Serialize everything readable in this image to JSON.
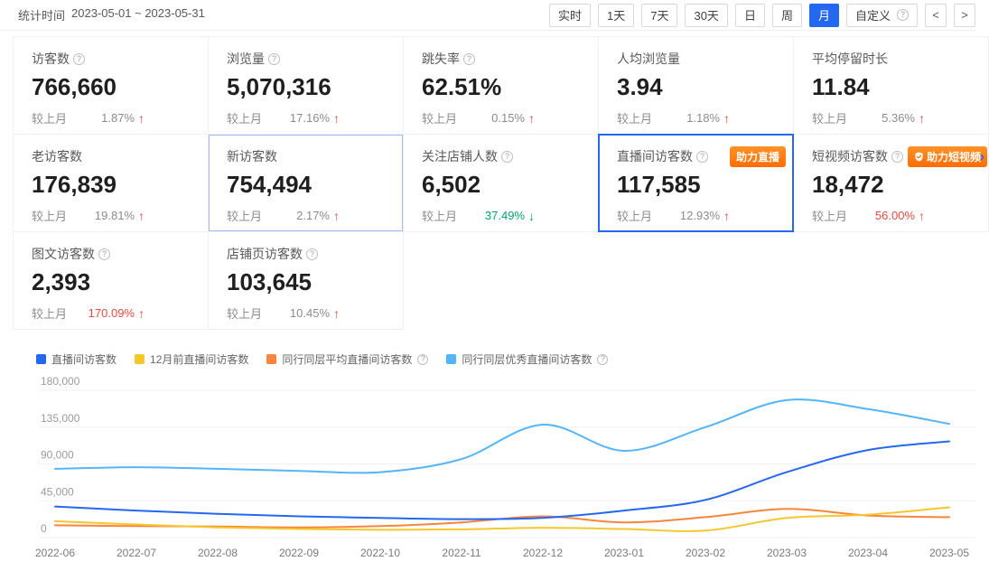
{
  "topbar": {
    "stat_time_label": "统计时间",
    "stat_time_range": "2023-05-01 ~ 2023-05-31",
    "buttons": [
      {
        "label": "实时",
        "active": false,
        "help": false
      },
      {
        "label": "1天",
        "active": false,
        "help": false
      },
      {
        "label": "7天",
        "active": false,
        "help": false
      },
      {
        "label": "30天",
        "active": false,
        "help": false
      },
      {
        "label": "日",
        "active": false,
        "help": false
      },
      {
        "label": "周",
        "active": false,
        "help": false
      },
      {
        "label": "月",
        "active": true,
        "help": false
      },
      {
        "label": "自定义",
        "active": false,
        "help": true
      }
    ],
    "nav": [
      {
        "icon": "chevron-left"
      },
      {
        "icon": "chevron-right"
      }
    ]
  },
  "colors": {
    "accent_blue": "#2468F2",
    "badge_orange": "#FF6C02",
    "rise_red": "#F5483B",
    "drop_green": "#00A873"
  },
  "cards": [
    {
      "label": "访客数",
      "help": true,
      "value": "766,660",
      "compare_label": "较上月",
      "pct": "1.87%",
      "pct_color": "gray",
      "direction": "up"
    },
    {
      "label": "浏览量",
      "help": true,
      "value": "5,070,316",
      "compare_label": "较上月",
      "pct": "17.16%",
      "pct_color": "gray",
      "direction": "up"
    },
    {
      "label": "跳失率",
      "help": true,
      "value": "62.51%",
      "compare_label": "较上月",
      "pct": "0.15%",
      "pct_color": "gray",
      "direction": "up"
    },
    {
      "label": "人均浏览量",
      "help": false,
      "value": "3.94",
      "compare_label": "较上月",
      "pct": "1.18%",
      "pct_color": "gray",
      "direction": "up"
    },
    {
      "label": "平均停留时长",
      "help": false,
      "value": "11.84",
      "compare_label": "较上月",
      "pct": "5.36%",
      "pct_color": "gray",
      "direction": "up"
    },
    {
      "label": "老访客数",
      "help": false,
      "value": "176,839",
      "compare_label": "较上月",
      "pct": "19.81%",
      "pct_color": "gray",
      "direction": "up"
    },
    {
      "label": "新访客数",
      "help": false,
      "value": "754,494",
      "compare_label": "较上月",
      "pct": "2.17%",
      "pct_color": "gray",
      "direction": "up",
      "highlight": "light"
    },
    {
      "label": "关注店铺人数",
      "help": true,
      "value": "6,502",
      "compare_label": "较上月",
      "pct": "37.49%",
      "pct_color": "green",
      "direction": "down"
    },
    {
      "label": "直播间访客数",
      "help": true,
      "value": "117,585",
      "compare_label": "较上月",
      "pct": "12.93%",
      "pct_color": "gray",
      "direction": "up",
      "highlight": "strong",
      "badge": "助力直播"
    },
    {
      "label": "短视频访客数",
      "help": true,
      "value": "18,472",
      "compare_label": "较上月",
      "pct": "56.00%",
      "pct_color": "red",
      "direction": "up",
      "badge": "助力短视频",
      "badge_icon": "shield-check",
      "trailing_icon": "chevron-right"
    },
    {
      "label": "图文访客数",
      "help": true,
      "value": "2,393",
      "compare_label": "较上月",
      "pct": "170.09%",
      "pct_color": "red",
      "direction": "up"
    },
    {
      "label": "店铺页访客数",
      "help": true,
      "value": "103,645",
      "compare_label": "较上月",
      "pct": "10.45%",
      "pct_color": "gray",
      "direction": "up"
    }
  ],
  "chart_data": {
    "type": "line",
    "x": [
      "2022-06",
      "2022-07",
      "2022-08",
      "2022-09",
      "2022-10",
      "2022-11",
      "2022-12",
      "2023-01",
      "2023-02",
      "2023-03",
      "2023-04",
      "2023-05"
    ],
    "series": [
      {
        "name": "直播间访客数",
        "color": "#2468F2",
        "help": false,
        "values": [
          38000,
          33000,
          29000,
          26000,
          24000,
          22500,
          24000,
          33000,
          46000,
          80000,
          107000,
          117585
        ]
      },
      {
        "name": "12月前直播间访客数",
        "color": "#F6C62D",
        "help": false,
        "values": [
          20000,
          16000,
          12500,
          10500,
          9500,
          10000,
          12000,
          10500,
          8500,
          24000,
          28000,
          37000
        ]
      },
      {
        "name": "同行同层平均直播间访客数",
        "color": "#F8853B",
        "help": true,
        "values": [
          15000,
          14000,
          13500,
          12500,
          14000,
          18500,
          26000,
          18500,
          25000,
          35000,
          27000,
          25000
        ]
      },
      {
        "name": "同行同层优秀直播间访客数",
        "color": "#54B5F8",
        "help": true,
        "values": [
          84000,
          86000,
          84000,
          81500,
          80000,
          96000,
          138000,
          106000,
          135000,
          168000,
          157000,
          139000
        ]
      }
    ],
    "ylim": [
      0,
      180000
    ],
    "y_tick_values": [
      0,
      45000,
      90000,
      135000,
      180000
    ],
    "y_tick_labels": [
      "0",
      "45,000",
      "90,000",
      "135,000",
      "180,000"
    ],
    "grid": true,
    "legend_position": "top-left"
  }
}
